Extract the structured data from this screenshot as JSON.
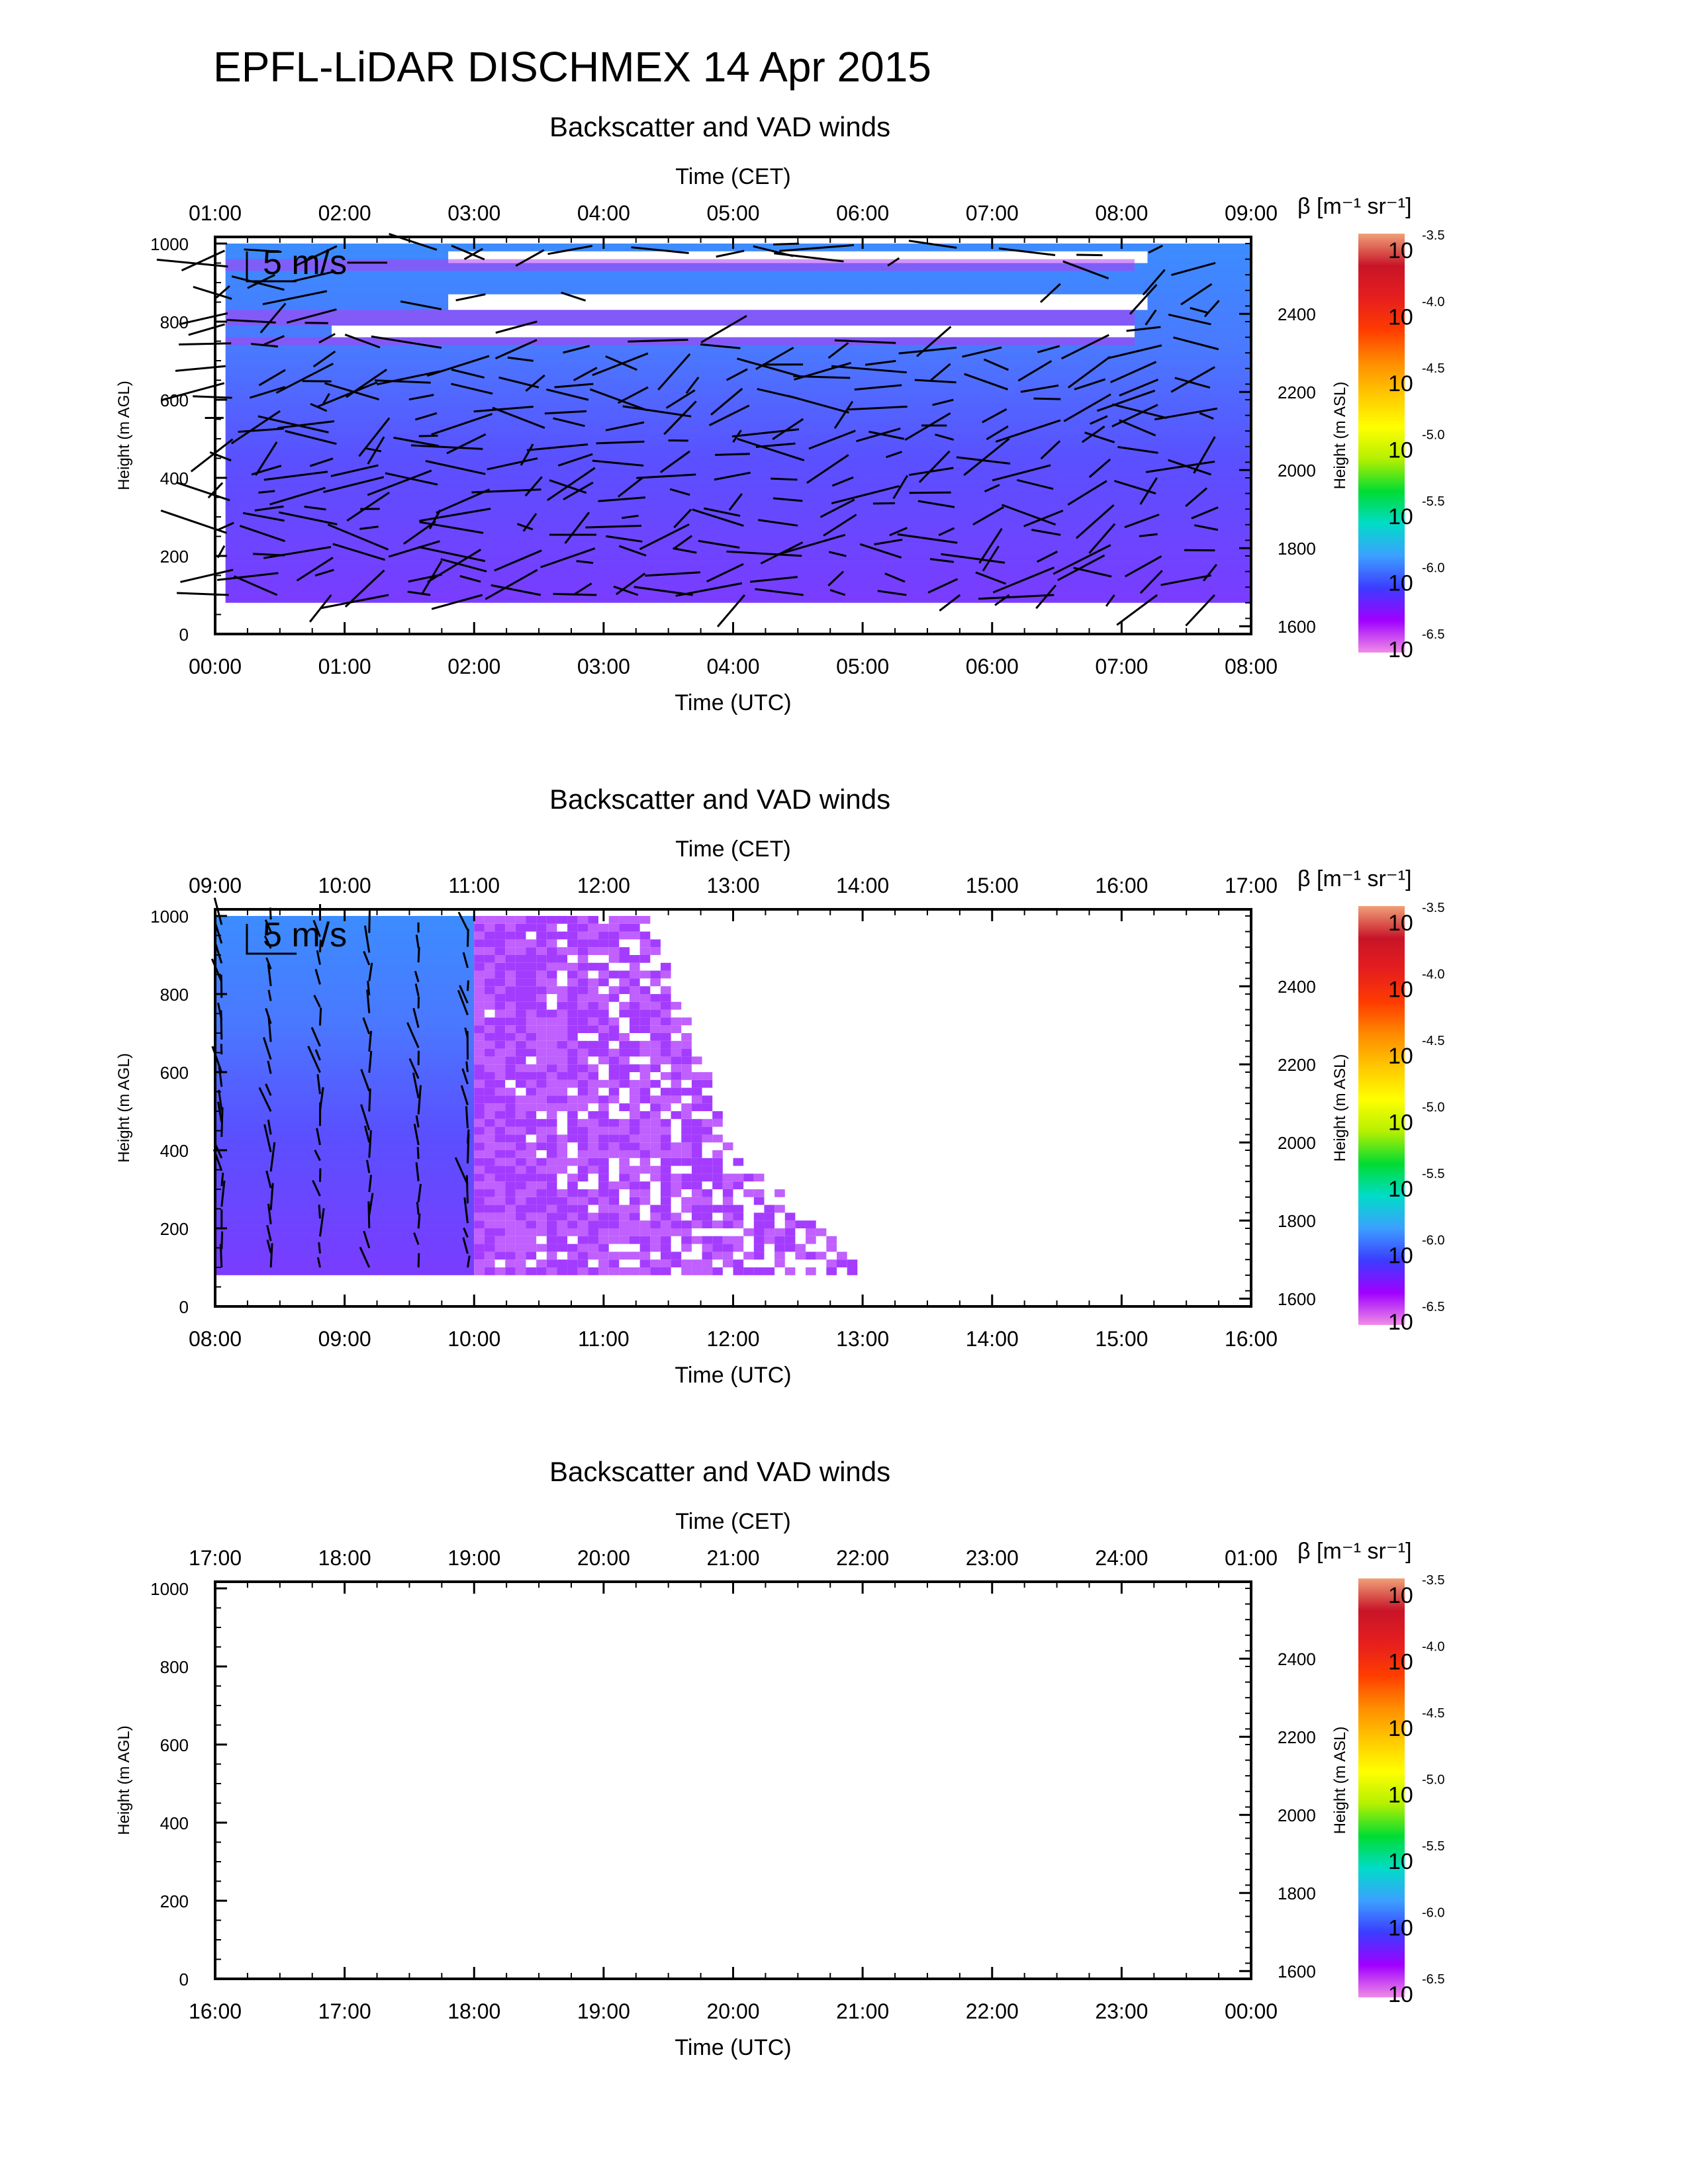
{
  "title": "EPFL-LiDAR DISCHMEX 14 Apr 2015",
  "colors": {
    "colorbar_stops": [
      "#f08ce6",
      "#a000ff",
      "#3c3cff",
      "#3ca0ff",
      "#00dcc8",
      "#00dc32",
      "#b4f000",
      "#ffff00",
      "#ffc800",
      "#ff8c00",
      "#ff3c00",
      "#e61e1e",
      "#c81428",
      "#f0a078"
    ],
    "axis": "#000000",
    "arrow": "#000000",
    "background_low": "#6a44ff",
    "background_high": "#3c8cff"
  },
  "chart_data": [
    {
      "type": "heatmap",
      "title": "Backscatter and VAD winds",
      "scale_label": "5 m/s",
      "x_top_label": "Time (CET)",
      "x_top_ticks": [
        "01:00",
        "02:00",
        "03:00",
        "04:00",
        "05:00",
        "06:00",
        "07:00",
        "08:00",
        "09:00"
      ],
      "x_bottom_label": "Time (UTC)",
      "x_bottom_ticks": [
        "00:00",
        "01:00",
        "02:00",
        "03:00",
        "04:00",
        "05:00",
        "06:00",
        "07:00",
        "08:00"
      ],
      "x_range_utc_hours": [
        0,
        8
      ],
      "y_left_label": "Height (m AGL)",
      "y_left_ticks": [
        "0",
        "200",
        "400",
        "600",
        "800",
        "1000"
      ],
      "y_left_range": [
        0,
        1000
      ],
      "y_right_label": "Height (m ASL)",
      "y_right_ticks": [
        "1600",
        "1800",
        "2000",
        "2200",
        "2400"
      ],
      "colorbar_label": "β [m⁻¹ sr⁻¹]",
      "colorbar_exponents": [
        "-3.5",
        "-4.0",
        "-4.5",
        "-5.0",
        "-5.5",
        "-6.0",
        "-6.5"
      ],
      "data_coverage_utc_hours": [
        0.08,
        8.0
      ],
      "cloud_layers_m": [
        [
          960,
          1000
        ],
        [
          870,
          930
        ],
        [
          780,
          830
        ]
      ]
    },
    {
      "type": "heatmap",
      "title": "Backscatter and VAD winds",
      "scale_label": "5 m/s",
      "x_top_label": "Time (CET)",
      "x_top_ticks": [
        "09:00",
        "10:00",
        "11:00",
        "12:00",
        "13:00",
        "14:00",
        "15:00",
        "16:00",
        "17:00"
      ],
      "x_bottom_label": "Time (UTC)",
      "x_bottom_ticks": [
        "08:00",
        "09:00",
        "10:00",
        "11:00",
        "12:00",
        "13:00",
        "14:00",
        "15:00",
        "16:00"
      ],
      "x_range_utc_hours": [
        8,
        16
      ],
      "y_left_label": "Height (m AGL)",
      "y_left_ticks": [
        "0",
        "200",
        "400",
        "600",
        "800",
        "1000"
      ],
      "y_left_range": [
        0,
        1000
      ],
      "y_right_label": "Height (m ASL)",
      "y_right_ticks": [
        "1600",
        "1800",
        "2000",
        "2200",
        "2400"
      ],
      "colorbar_label": "β [m⁻¹ sr⁻¹]",
      "colorbar_exponents": [
        "-3.5",
        "-4.0",
        "-4.5",
        "-5.0",
        "-5.5",
        "-6.0",
        "-6.5"
      ],
      "data_coverage_utc_hours": [
        8.0,
        13.0
      ]
    },
    {
      "type": "heatmap",
      "title": "Backscatter and VAD winds",
      "x_top_label": "Time (CET)",
      "x_top_ticks": [
        "17:00",
        "18:00",
        "19:00",
        "20:00",
        "21:00",
        "22:00",
        "23:00",
        "24:00",
        "01:00"
      ],
      "x_bottom_label": "Time (UTC)",
      "x_bottom_ticks": [
        "16:00",
        "17:00",
        "18:00",
        "19:00",
        "20:00",
        "21:00",
        "22:00",
        "23:00",
        "00:00"
      ],
      "x_range_utc_hours": [
        16,
        24
      ],
      "y_left_label": "Height (m AGL)",
      "y_left_ticks": [
        "0",
        "200",
        "400",
        "600",
        "800",
        "1000"
      ],
      "y_left_range": [
        0,
        1000
      ],
      "y_right_label": "Height (m ASL)",
      "y_right_ticks": [
        "1600",
        "1800",
        "2000",
        "2200",
        "2400"
      ],
      "colorbar_label": "β [m⁻¹ sr⁻¹]",
      "colorbar_exponents": [
        "-3.5",
        "-4.0",
        "-4.5",
        "-5.0",
        "-5.5",
        "-6.0",
        "-6.5"
      ],
      "data_coverage_utc_hours": []
    }
  ]
}
